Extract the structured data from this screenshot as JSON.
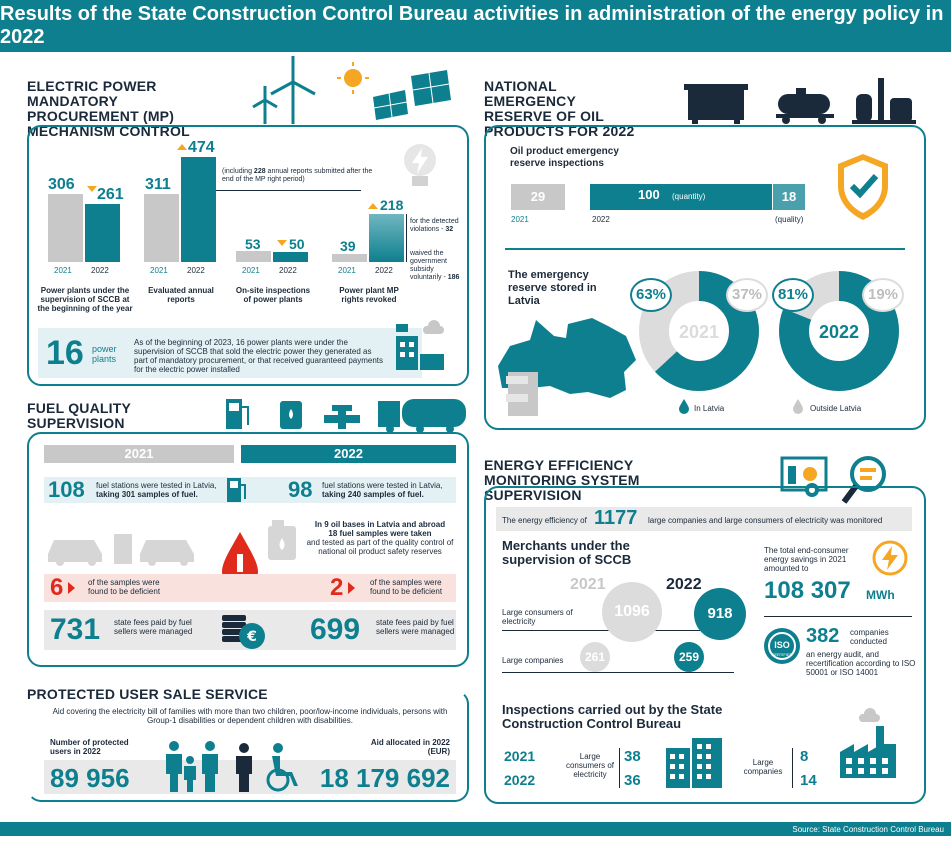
{
  "title": "Results of the State Construction Control Bureau activities in  administration of the energy policy in 2022",
  "mp": {
    "title": "ELECTRIC POWER MANDATORY PROCUREMENT (MP) MECHANISM CONTROL",
    "groups": [
      {
        "v2021": "306",
        "v2022": "261",
        "label": "Power plants under the supervision of SCCB at the beginning of the year"
      },
      {
        "v2021": "311",
        "v2022": "474",
        "label": "Evaluated annual reports"
      },
      {
        "v2021": "53",
        "v2022": "50",
        "label": "On-site inspections of power plants"
      },
      {
        "v2021": "39",
        "v2022": "218",
        "label": "Power plant MP rights revoked"
      }
    ],
    "y2021": "2021",
    "y2022": "2022",
    "note_reports_pre": "(including ",
    "note_reports_num": "228",
    "note_reports_post": " annual reports submitted after the end of the MP right period)",
    "note_detected": "for the detected violations - ",
    "note_detected_num": "32",
    "note_waived": "waived the government subsidy voluntarily - ",
    "note_waived_num": "186",
    "footer_num": "16",
    "footer_unit": "power plants",
    "footer_text": "As of the beginning of 2023, 16 power plants were under the supervision of SCCB that sold the electric power they generated as part of mandatory procurement, or that received guaranteed payments for the electric power installed"
  },
  "oil": {
    "title": "NATIONAL EMERGENCY RESERVE OF OIL PRODUCTS FOR 2022",
    "inspections_label": "Oil product emergency reserve inspections",
    "v2021": "29",
    "y2021": "2021",
    "v2022": "100",
    "qty": "(quantity)",
    "y2022": "2022",
    "quality_val": "18",
    "quality": "(quality)",
    "stored_label": "The emergency reserve stored in Latvia",
    "pie2021": {
      "year": "2021",
      "in": "63%",
      "out": "37%",
      "in_val": 63
    },
    "pie2022": {
      "year": "2022",
      "in": "81%",
      "out": "19%",
      "in_val": 81
    },
    "legend_in": "In Latvia",
    "legend_out": "Outside Latvia"
  },
  "fuel": {
    "title": "FUEL QUALITY SUPERVISION",
    "y2021": "2021",
    "y2022": "2022",
    "st2021_num": "108",
    "st2021_text": "fuel stations were tested in Latvia,",
    "st2021_bold": "taking 301 samples of fuel.",
    "st2022_num": "98",
    "st2022_text": "fuel stations were tested in Latvia,",
    "st2022_bold": "taking 240 samples of fuel.",
    "bases_bold1": "In 9 oil bases in Latvia and abroad",
    "bases_bold2": "18 fuel samples were taken",
    "bases_text": "and tested as part of the quality control of national oil product safety reserves",
    "def2021_num": "6",
    "def2021_text": "of the samples were found to be deficient",
    "def2022_num": "2",
    "def2022_text": "of the samples were found to be deficient",
    "fee2021_num": "731",
    "fee2021_text": "state fees paid by fuel sellers were managed",
    "fee2022_num": "699",
    "fee2022_text": "state fees paid by fuel sellers were managed",
    "euro": "€"
  },
  "psu": {
    "title": "PROTECTED USER SALE SERVICE",
    "desc": "Aid covering the electricity bill of families with more than two children, poor/low-income individuals, persons with Group-1 disabilities or dependent children with disabilities.",
    "users_label": "Number of protected users in 2022",
    "users": "89 956",
    "aid_label": "Aid allocated in 2022 (EUR)",
    "aid": "18 179 692"
  },
  "ee": {
    "title": "ENERGY EFFICIENCY MONITORING SYSTEM SUPERVISION",
    "eff_pre": "The energy efficiency of",
    "eff_num": "1177",
    "eff_post": "large companies and large consumers of electricity was monitored",
    "merchants": "Merchants under the supervision of SCCB",
    "y2021": "2021",
    "y2022": "2022",
    "lc_label": "Large consumers of electricity",
    "lc2021": "1096",
    "lc2022": "918",
    "lco_label": "Large companies",
    "lco2021": "261",
    "lco2022": "259",
    "savings_label": "The total end-consumer energy savings in 2021 amounted to",
    "savings": "108 307",
    "savings_unit": "MWh",
    "audit_num": "382",
    "audit_text1": "companies conducted",
    "audit_text2": "an energy audit, and recertification according to ISO 50001 or ISO 14001",
    "iso": "ISO",
    "certified": "CERTIFIED",
    "insp_title": "Inspections carried out by the State Construction Control Bureau",
    "insp_y2021": "2021",
    "insp_y2022": "2022",
    "insp_lc_label": "Large consumers of electricity",
    "insp_lc2021": "38",
    "insp_lc2022": "36",
    "insp_co_label": "Large companies",
    "insp_co2021": "8",
    "insp_co2022": "14"
  },
  "source": "Source: State Construction Control Bureau",
  "colors": {
    "teal": "#0e7f8e",
    "gray": "#c8c8c8",
    "red": "#e02a1c",
    "orange": "#f5a623"
  }
}
